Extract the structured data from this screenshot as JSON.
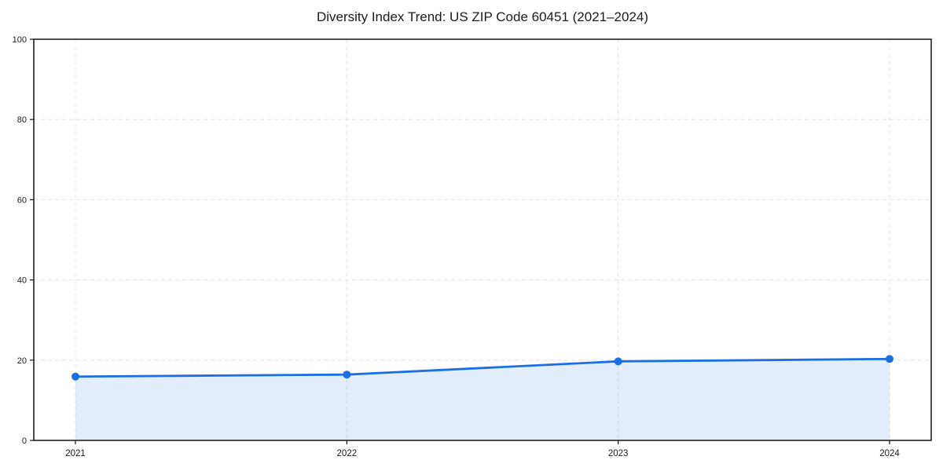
{
  "chart_data": {
    "type": "area",
    "title": "Diversity Index Trend: US ZIP Code 60451 (2021–2024)",
    "xlabel": "",
    "ylabel": "",
    "categories": [
      "2021",
      "2022",
      "2023",
      "2024"
    ],
    "series": [
      {
        "name": "Diversity Index",
        "values": [
          15.9,
          16.4,
          19.7,
          20.3
        ]
      }
    ],
    "ylim": [
      0,
      100
    ],
    "yticks": [
      0,
      20,
      40,
      60,
      80,
      100
    ],
    "grid": true,
    "grid_style": "dashed",
    "legend_position": "none",
    "colors": {
      "line": "#1a6fe3",
      "marker": "#1a6fe3",
      "fill": "rgba(26, 111, 227, 0.12)",
      "grid": "#e4e4e4",
      "spine": "#141414",
      "tick_label": "#1a1a1a",
      "title": "#1a1a1a",
      "background": "#ffffff"
    }
  }
}
